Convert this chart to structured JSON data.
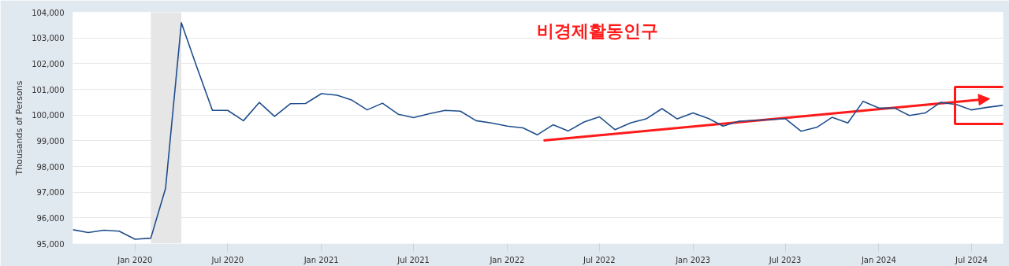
{
  "chart_data": {
    "type": "line",
    "ylabel": "Thousands of Persons",
    "annotations": [
      "비경제활동인구"
    ],
    "x": [
      "2019-09",
      "2019-10",
      "2019-11",
      "2019-12",
      "2020-01",
      "2020-02",
      "2020-03",
      "2020-04",
      "2020-05",
      "2020-06",
      "2020-07",
      "2020-08",
      "2020-09",
      "2020-10",
      "2020-11",
      "2020-12",
      "2021-01",
      "2021-02",
      "2021-03",
      "2021-04",
      "2021-05",
      "2021-06",
      "2021-07",
      "2021-08",
      "2021-09",
      "2021-10",
      "2021-11",
      "2021-12",
      "2022-01",
      "2022-02",
      "2022-03",
      "2022-04",
      "2022-05",
      "2022-06",
      "2022-07",
      "2022-08",
      "2022-09",
      "2022-10",
      "2022-11",
      "2022-12",
      "2023-01",
      "2023-02",
      "2023-03",
      "2023-04",
      "2023-05",
      "2023-06",
      "2023-07",
      "2023-08",
      "2023-09",
      "2023-10",
      "2023-11",
      "2023-12",
      "2024-01",
      "2024-02",
      "2024-03",
      "2024-04",
      "2024-05",
      "2024-06",
      "2024-07",
      "2024-08",
      "2024-09"
    ],
    "series": [
      {
        "color": "#1f4e8c",
        "values": [
          95540,
          95430,
          95520,
          95480,
          95170,
          95210,
          97150,
          103590,
          101890,
          100180,
          100180,
          99780,
          100490,
          99950,
          100440,
          100450,
          100830,
          100770,
          100590,
          100200,
          100460,
          100030,
          99900,
          100050,
          100180,
          100150,
          99780,
          99690,
          99570,
          99500,
          99230,
          99620,
          99380,
          99730,
          99930,
          99430,
          99700,
          99850,
          100250,
          99850,
          100080,
          99860,
          99570,
          99760,
          99790,
          99820,
          99860,
          99370,
          99520,
          99910,
          99690,
          100530,
          100270,
          100270,
          99980,
          100080,
          100490,
          100410,
          100200,
          100300,
          100380
        ]
      }
    ],
    "xlim": [
      "2019-09",
      "2024-09"
    ],
    "xticks": [
      {
        "value": "2020-01",
        "label": "Jan 2020"
      },
      {
        "value": "2020-07",
        "label": "Jul 2020"
      },
      {
        "value": "2021-01",
        "label": "Jan 2021"
      },
      {
        "value": "2021-07",
        "label": "Jul 2021"
      },
      {
        "value": "2022-01",
        "label": "Jan 2022"
      },
      {
        "value": "2022-07",
        "label": "Jul 2022"
      },
      {
        "value": "2023-01",
        "label": "Jan 2023"
      },
      {
        "value": "2023-07",
        "label": "Jul 2023"
      },
      {
        "value": "2024-01",
        "label": "Jan 2024"
      },
      {
        "value": "2024-07",
        "label": "Jul 2024"
      }
    ],
    "ylim": [
      95000,
      104000
    ],
    "yticks": [
      {
        "value": 95000,
        "label": "95,000"
      },
      {
        "value": 96000,
        "label": "96,000"
      },
      {
        "value": 97000,
        "label": "97,000"
      },
      {
        "value": 98000,
        "label": "98,000"
      },
      {
        "value": 99000,
        "label": "99,000"
      },
      {
        "value": 100000,
        "label": "100,000"
      },
      {
        "value": 101000,
        "label": "101,000"
      },
      {
        "value": 102000,
        "label": "102,000"
      },
      {
        "value": 103000,
        "label": "103,000"
      },
      {
        "value": 104000,
        "label": "104,000"
      }
    ],
    "bands": [
      {
        "axis": "x",
        "from": "2020-02",
        "to": "2020-04",
        "color": "#e6e6e6"
      }
    ],
    "grid": "y",
    "line_style": "solid"
  }
}
